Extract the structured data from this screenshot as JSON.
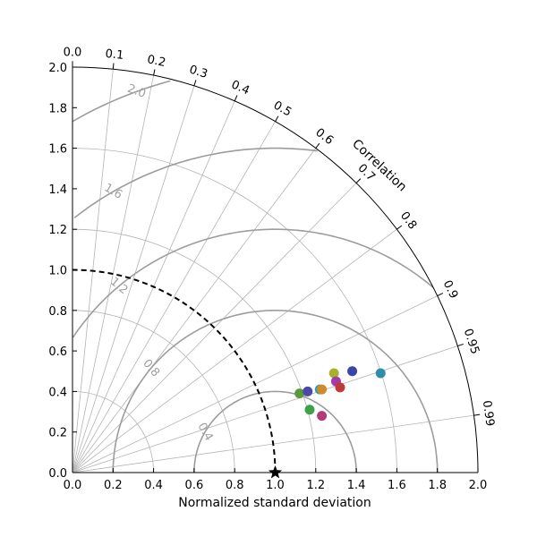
{
  "chart_data": {
    "type": "scatter",
    "subtype": "taylor-diagram",
    "title": "",
    "xlabel": "Normalized standard deviation",
    "ylabel": "",
    "angular_axis_label": "Correlation",
    "std_range": [
      0.0,
      2.0
    ],
    "std_ticks": [
      "0.0",
      "0.2",
      "0.4",
      "0.6",
      "0.8",
      "1.0",
      "1.2",
      "1.4",
      "1.6",
      "1.8",
      "2.0"
    ],
    "std_gridlines": [
      0.4,
      0.8,
      1.2,
      1.6,
      2.0
    ],
    "correlation_ticks": [
      "0.0",
      "0.1",
      "0.2",
      "0.3",
      "0.4",
      "0.5",
      "0.6",
      "0.7",
      "0.8",
      "0.9",
      "0.95",
      "0.99"
    ],
    "rms_contours": [
      0.4,
      0.8,
      1.2,
      1.6,
      2.0
    ],
    "rms_contour_labels": [
      "0.4",
      "0.8",
      "1.2",
      "1.6",
      "2.0"
    ],
    "reference": {
      "std": 1.0,
      "correlation": 1.0,
      "marker": "star"
    },
    "reference_arc_std": 1.0,
    "grid": true,
    "legend": "none",
    "points": [
      {
        "x": 1.12,
        "y": 0.39,
        "color": "#5b9a3c"
      },
      {
        "x": 1.16,
        "y": 0.4,
        "color": "#4a4aa8"
      },
      {
        "x": 1.17,
        "y": 0.31,
        "color": "#3fa147"
      },
      {
        "x": 1.22,
        "y": 0.41,
        "color": "#2f9fb5"
      },
      {
        "x": 1.23,
        "y": 0.41,
        "color": "#d08a2a"
      },
      {
        "x": 1.23,
        "y": 0.28,
        "color": "#b53a79"
      },
      {
        "x": 1.29,
        "y": 0.49,
        "color": "#a8b02a"
      },
      {
        "x": 1.3,
        "y": 0.45,
        "color": "#a33aa8"
      },
      {
        "x": 1.32,
        "y": 0.42,
        "color": "#c0393b"
      },
      {
        "x": 1.38,
        "y": 0.5,
        "color": "#3b45a8"
      },
      {
        "x": 1.52,
        "y": 0.49,
        "color": "#2e8fa8"
      }
    ]
  }
}
